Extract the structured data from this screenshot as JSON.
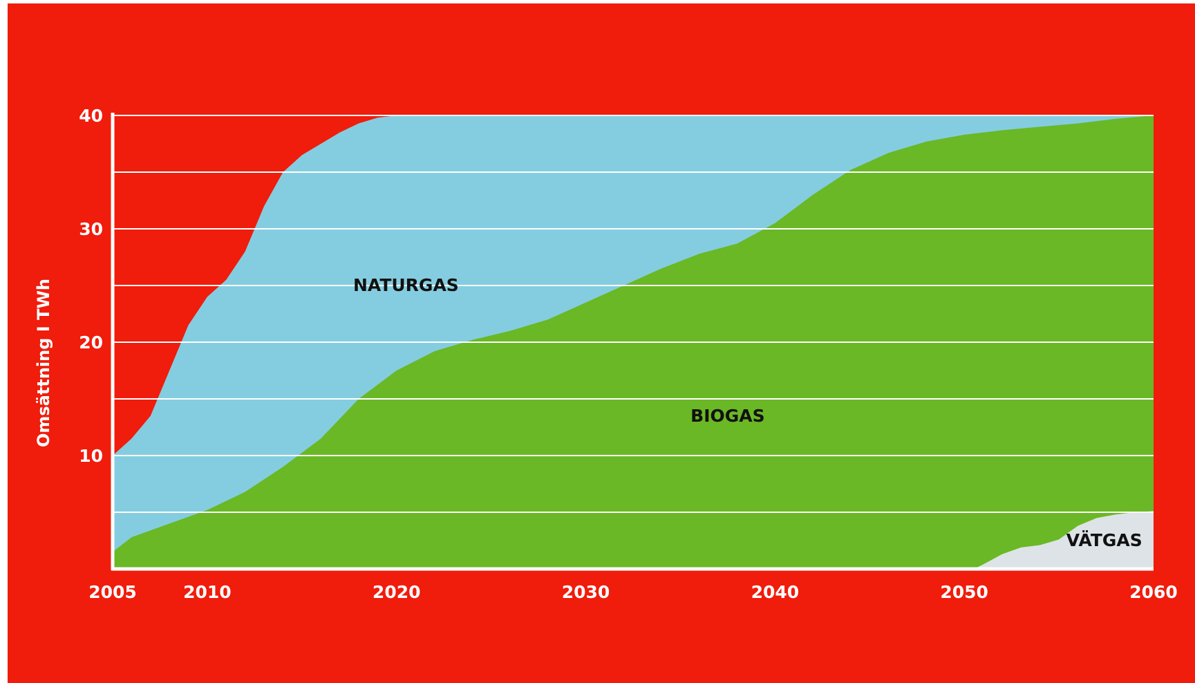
{
  "chart_data": {
    "type": "area",
    "stacked": true,
    "title": "",
    "xlabel": "",
    "ylabel": "Omsättning I TWh",
    "x_ticks": [
      2005,
      2010,
      2020,
      2030,
      2040,
      2050,
      2060
    ],
    "y_ticks": [
      10,
      20,
      30,
      40
    ],
    "xlim": [
      2005,
      2060
    ],
    "ylim": [
      0,
      40
    ],
    "grid": true,
    "series": [
      {
        "name": "VÄTGAS",
        "color": "#dde3e6",
        "x": [
          2005,
          2050.5,
          2051,
          2052,
          2053,
          2054,
          2055,
          2056,
          2057,
          2058,
          2059,
          2060
        ],
        "values": [
          0,
          0,
          0.4,
          1.3,
          1.9,
          2.1,
          2.6,
          3.8,
          4.5,
          4.8,
          5.0,
          5.1
        ]
      },
      {
        "name": "BIOGAS",
        "color": "#6ab825",
        "x": [
          2005,
          2006,
          2008,
          2010,
          2012,
          2014,
          2016,
          2018,
          2020,
          2022,
          2024,
          2026,
          2028,
          2030,
          2032,
          2034,
          2036,
          2038,
          2040,
          2042,
          2044,
          2046,
          2048,
          2050,
          2052,
          2054,
          2056,
          2058,
          2060
        ],
        "values": [
          1.5,
          2.8,
          4.0,
          5.2,
          6.8,
          9.0,
          11.5,
          15.0,
          17.5,
          19.2,
          20.2,
          21.0,
          22.0,
          23.5,
          25.0,
          26.5,
          27.8,
          28.7,
          30.5,
          33.0,
          35.2,
          36.7,
          37.7,
          38.3,
          38.7,
          39.0,
          39.3,
          39.7,
          40.0
        ]
      },
      {
        "name": "NATURGAS",
        "color": "#84cde0",
        "x": [
          2005,
          2006,
          2007,
          2008,
          2009,
          2010,
          2011,
          2012,
          2013,
          2014,
          2015,
          2016,
          2017,
          2018,
          2019,
          2020,
          2060
        ],
        "values": [
          10.0,
          11.5,
          13.5,
          17.5,
          21.5,
          24.0,
          25.5,
          28.0,
          32.0,
          35.0,
          36.5,
          37.5,
          38.5,
          39.3,
          39.8,
          40.0,
          40.0
        ]
      }
    ],
    "colors": {
      "background": "#f01c0c",
      "axis": "#ffffff",
      "grid": "#ffffff",
      "label": "#111111"
    }
  }
}
